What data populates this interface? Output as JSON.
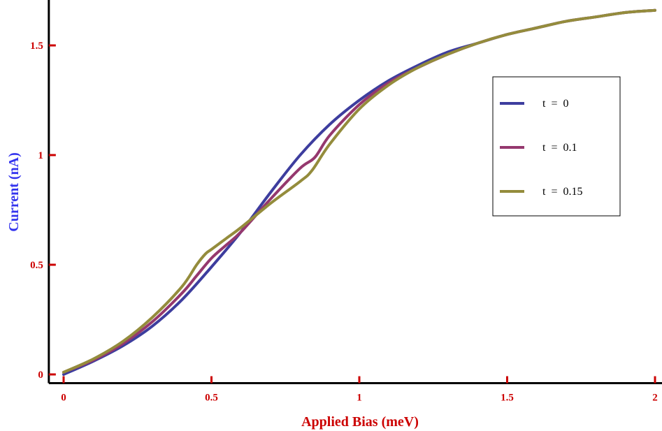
{
  "chart_data": {
    "type": "line",
    "title": "",
    "xlabel": "Applied Bias  (meV)",
    "ylabel": "Current  (nA)",
    "xlim": [
      -0.05,
      2.05
    ],
    "ylim": [
      -0.04,
      1.76
    ],
    "x_ticks": [
      0,
      0.5,
      1,
      1.5,
      2
    ],
    "x_tick_labels": [
      "0",
      "0.5",
      "1",
      "1.5",
      "2"
    ],
    "y_ticks": [
      0,
      0.5,
      1,
      1.5
    ],
    "y_tick_labels": [
      "0",
      "0.5",
      "1",
      "1.5"
    ],
    "grid": false,
    "legend_position": "right",
    "colors": {
      "axis_text": "#cc0000",
      "axis_label": "#3333ee",
      "axis_line": "#000000"
    },
    "series": [
      {
        "name": "t  =  0",
        "color": "#3d3d9e",
        "x": [
          0,
          0.1,
          0.2,
          0.3,
          0.4,
          0.5,
          0.6,
          0.7,
          0.8,
          0.9,
          1.0,
          1.1,
          1.2,
          1.3,
          1.4,
          1.5,
          1.6,
          1.7,
          1.8,
          1.9,
          2.0
        ],
        "y": [
          0.0,
          0.06,
          0.13,
          0.22,
          0.34,
          0.49,
          0.65,
          0.83,
          1.0,
          1.14,
          1.25,
          1.34,
          1.41,
          1.47,
          1.51,
          1.55,
          1.58,
          1.61,
          1.63,
          1.65,
          1.66
        ]
      },
      {
        "name": "t  =  0.1",
        "color": "#95386e",
        "x": [
          0,
          0.1,
          0.2,
          0.3,
          0.4,
          0.45,
          0.5,
          0.55,
          0.6,
          0.7,
          0.8,
          0.85,
          0.9,
          1.0,
          1.1,
          1.2,
          1.3,
          1.4,
          1.5,
          1.6,
          1.7,
          1.8,
          1.9,
          2.0
        ],
        "y": [
          0.01,
          0.065,
          0.14,
          0.24,
          0.37,
          0.45,
          0.53,
          0.59,
          0.65,
          0.8,
          0.94,
          0.99,
          1.09,
          1.23,
          1.33,
          1.4,
          1.46,
          1.51,
          1.55,
          1.58,
          1.61,
          1.63,
          1.65,
          1.66
        ]
      },
      {
        "name": "t  =  0.15",
        "color": "#948c3c",
        "x": [
          0,
          0.1,
          0.2,
          0.3,
          0.4,
          0.45,
          0.48,
          0.5,
          0.55,
          0.6,
          0.7,
          0.8,
          0.84,
          0.9,
          1.0,
          1.1,
          1.2,
          1.3,
          1.4,
          1.5,
          1.6,
          1.7,
          1.8,
          1.9,
          2.0
        ],
        "y": [
          0.01,
          0.07,
          0.15,
          0.26,
          0.4,
          0.5,
          0.55,
          0.57,
          0.62,
          0.67,
          0.78,
          0.88,
          0.93,
          1.05,
          1.21,
          1.32,
          1.4,
          1.46,
          1.51,
          1.55,
          1.58,
          1.61,
          1.63,
          1.65,
          1.66
        ]
      }
    ]
  }
}
